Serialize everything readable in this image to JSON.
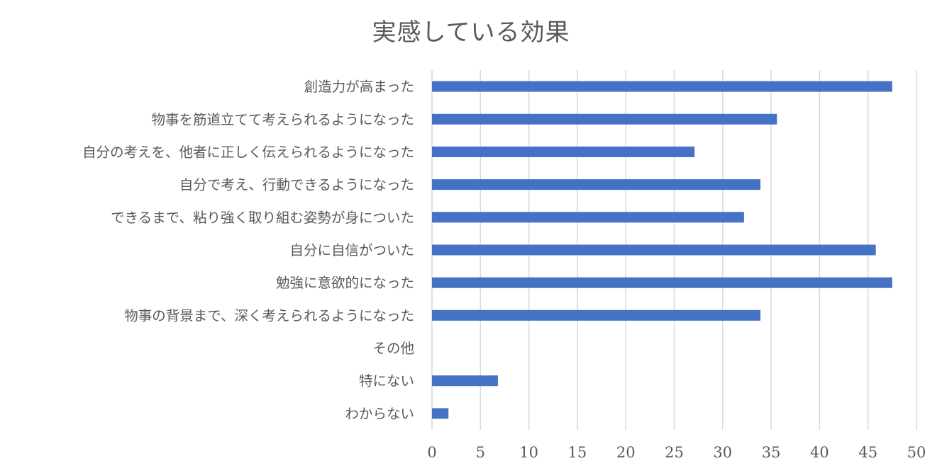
{
  "chart_data": {
    "type": "bar",
    "orientation": "horizontal",
    "title": "実感している効果",
    "categories": [
      "創造力が高まった",
      "物事を筋道立てて考えられるようになった",
      "自分の考えを、他者に正しく伝えられるようになった",
      "自分で考え、行動できるようになった",
      "できるまで、粘り強く取り組む姿勢が身についた",
      "自分に自信がついた",
      "勉強に意欲的になった",
      "物事の背景まで、深く考えられるようになった",
      "その他",
      "特にない",
      "わからない"
    ],
    "values": [
      47.5,
      35.6,
      27.1,
      33.9,
      32.2,
      45.8,
      47.5,
      33.9,
      0,
      6.8,
      1.7
    ],
    "xlim": [
      0,
      50
    ],
    "xticks": [
      0,
      5,
      10,
      15,
      20,
      25,
      30,
      35,
      40,
      45,
      50
    ],
    "grid": "vertical",
    "legend": "none",
    "bar_color": "#4472C4",
    "grid_color": "#D9D9D9",
    "text_color": "#595959"
  }
}
